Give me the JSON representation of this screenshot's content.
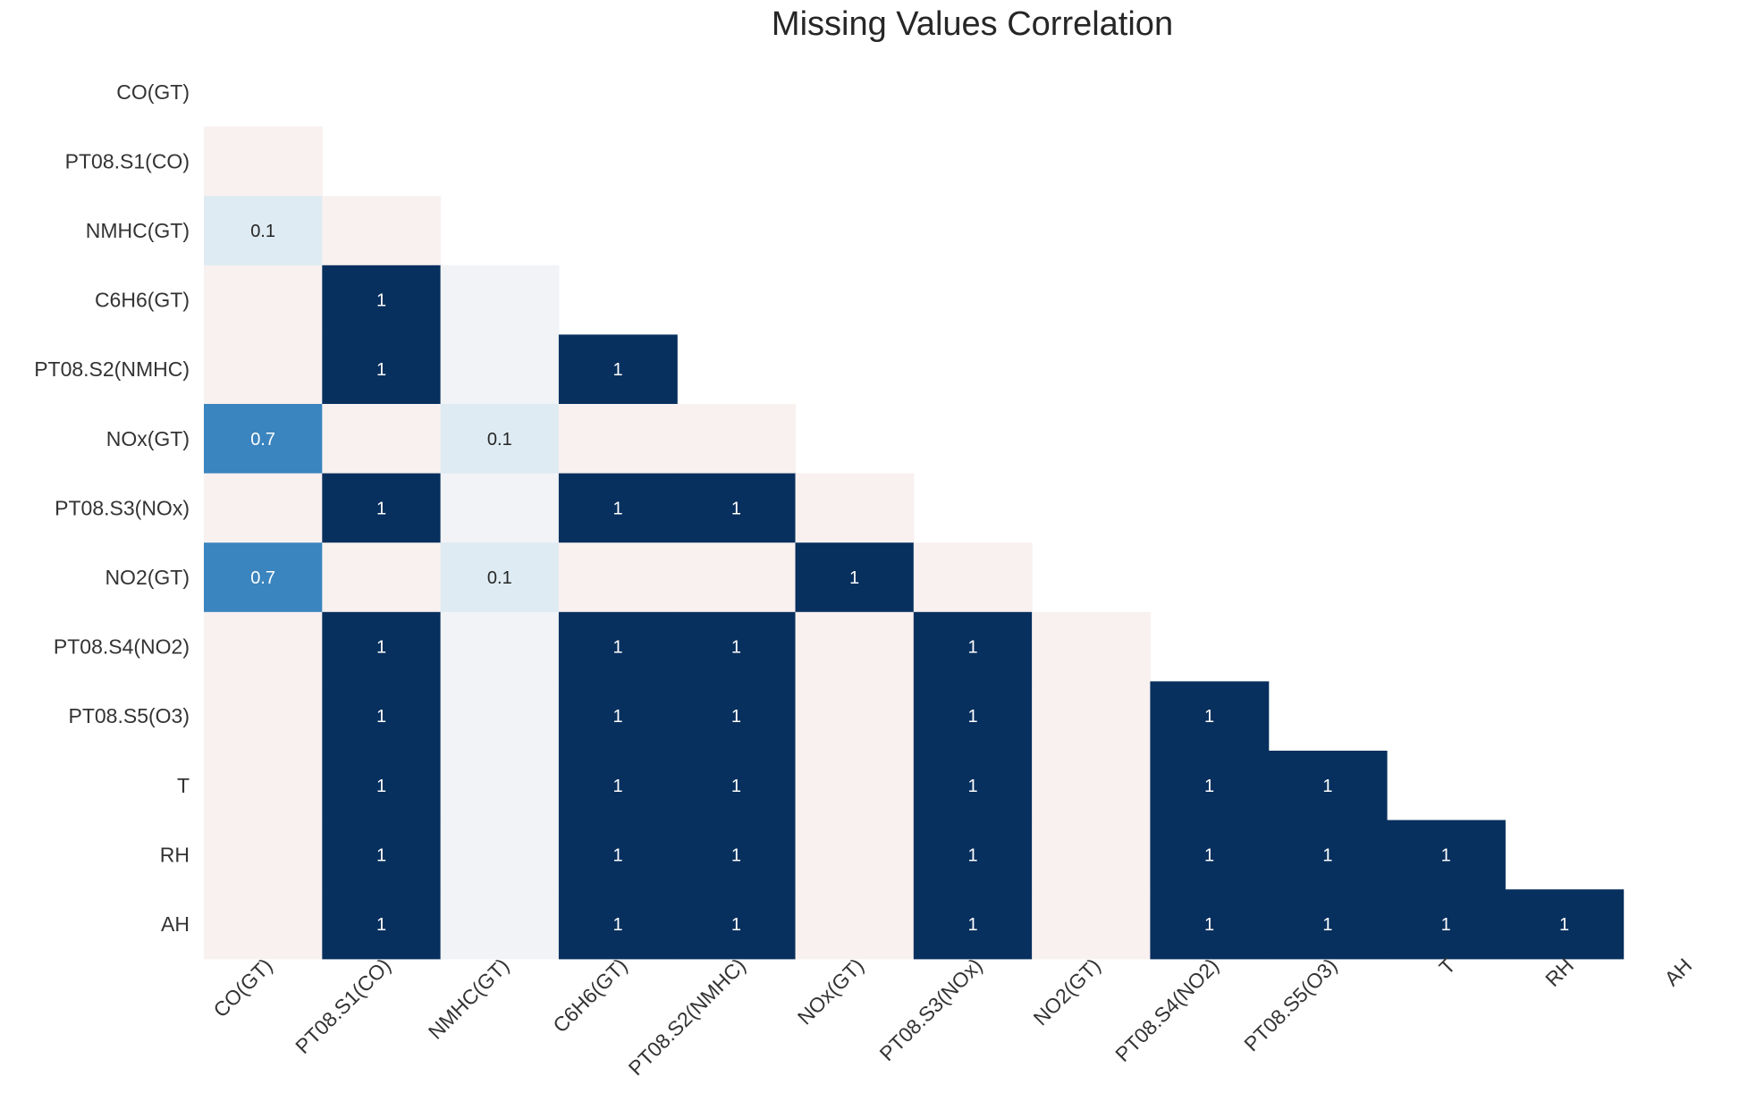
{
  "chart_data": {
    "type": "heatmap",
    "title": "Missing Values Correlation",
    "variables": [
      "CO(GT)",
      "PT08.S1(CO)",
      "NMHC(GT)",
      "C6H6(GT)",
      "PT08.S2(NMHC)",
      "NOx(GT)",
      "PT08.S3(NOx)",
      "NO2(GT)",
      "PT08.S4(NO2)",
      "PT08.S5(O3)",
      "T",
      "RH",
      "AH"
    ],
    "x_labels": [
      "CO(GT)",
      "PT08.S1(CO)",
      "NMHC(GT)",
      "C6H6(GT)",
      "PT08.S2(NMHC)",
      "NOx(GT)",
      "PT08.S3(NOx)",
      "NO2(GT)",
      "PT08.S4(NO2)",
      "PT08.S5(O3)",
      "T",
      "RH",
      "AH"
    ],
    "y_labels": [
      "CO(GT)",
      "PT08.S1(CO)",
      "NMHC(GT)",
      "C6H6(GT)",
      "PT08.S2(NMHC)",
      "NOx(GT)",
      "PT08.S3(NOx)",
      "NO2(GT)",
      "PT08.S4(NO2)",
      "PT08.S5(O3)",
      "T",
      "RH",
      "AH"
    ],
    "triangle": "lower",
    "matrix": [
      [],
      [
        0
      ],
      [
        0.1,
        0
      ],
      [
        0,
        1,
        0
      ],
      [
        0,
        1,
        0,
        1
      ],
      [
        0.7,
        0,
        0.1,
        0,
        0
      ],
      [
        0,
        1,
        0,
        1,
        1,
        0
      ],
      [
        0.7,
        0,
        0.1,
        0,
        0,
        1,
        0
      ],
      [
        0,
        1,
        0,
        1,
        1,
        0,
        1,
        0
      ],
      [
        0,
        1,
        0,
        1,
        1,
        0,
        1,
        0,
        1
      ],
      [
        0,
        1,
        0,
        1,
        1,
        0,
        1,
        0,
        1,
        1
      ],
      [
        0,
        1,
        0,
        1,
        1,
        0,
        1,
        0,
        1,
        1,
        1
      ],
      [
        0,
        1,
        0,
        1,
        1,
        0,
        1,
        0,
        1,
        1,
        1,
        1
      ]
    ],
    "cell_colors": {
      "1": "#08305e",
      "0.7": "#3a84bf",
      "0.1": "#deebf3",
      "0": "#f8f1f0",
      "0_nmhc_column": "#f1f3f6"
    },
    "text_colors": {
      "dark": "#ffffff",
      "light": "#262626"
    }
  }
}
